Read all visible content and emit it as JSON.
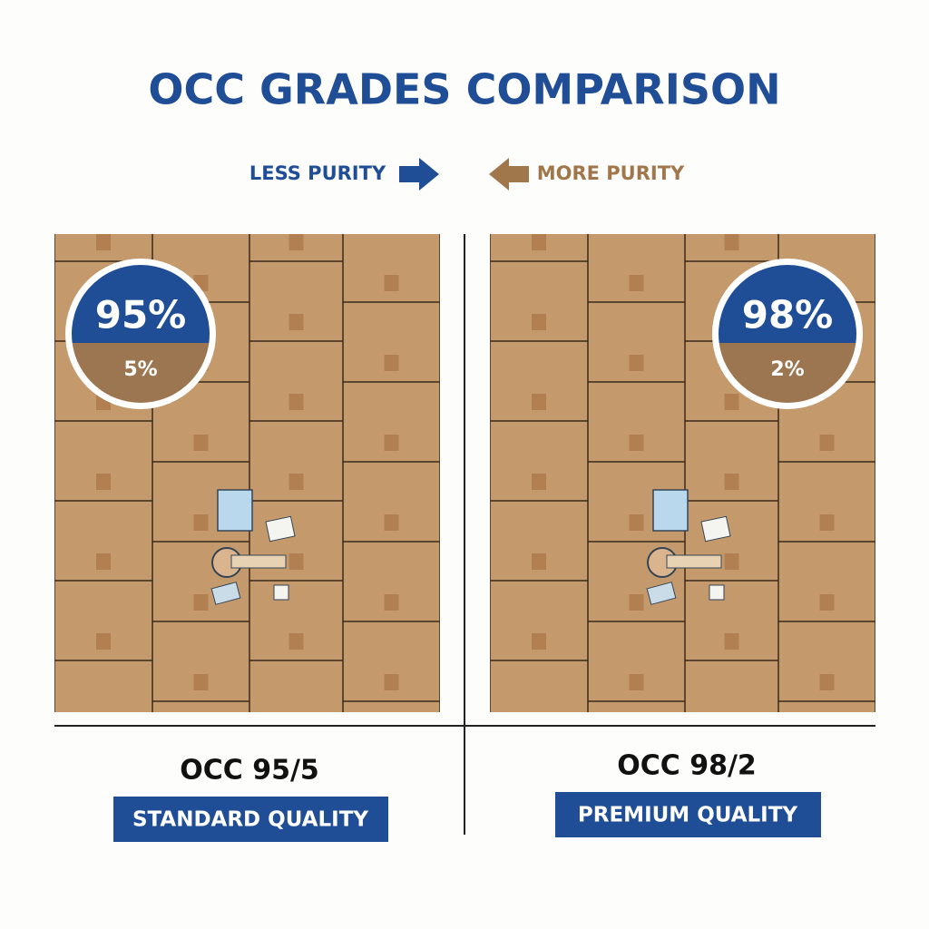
{
  "title": "OCC GRADES COMPARISON",
  "legend": {
    "left": "LESS PURITY",
    "right": "MORE PURITY"
  },
  "panels": [
    {
      "fiber": "95%",
      "contaminant": "5%",
      "name": "OCC 95/5",
      "quality": "STANDARD QUALITY"
    },
    {
      "fiber": "98%",
      "contaminant": "2%",
      "name": "OCC 98/2",
      "quality": "PREMIUM QUALITY"
    }
  ]
}
